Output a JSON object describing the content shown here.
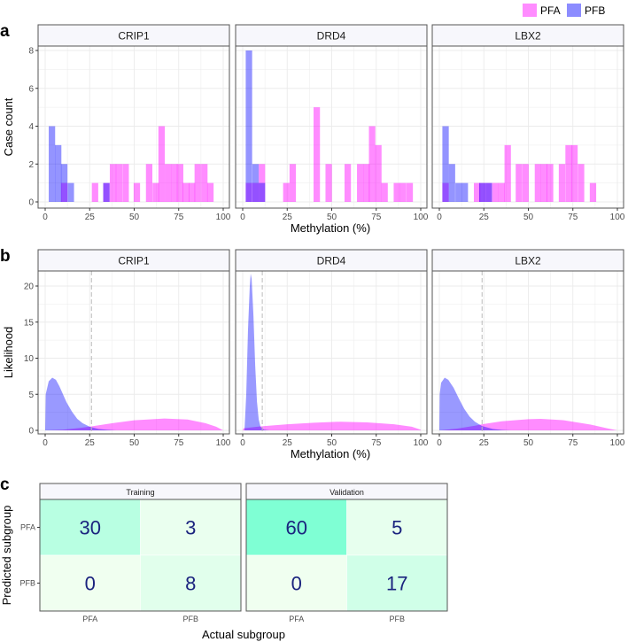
{
  "legend": {
    "items": [
      {
        "label": "PFA",
        "color": "#ff00ff"
      },
      {
        "label": "PFB",
        "color": "#0000ff"
      }
    ]
  },
  "chart_data": [
    {
      "panel": "a",
      "type": "bar",
      "subtype": "histogram",
      "xlabel": "Methylation (%)",
      "ylabel": "Case count",
      "xlim": [
        0,
        100
      ],
      "ylim": [
        0,
        8
      ],
      "xticks": [
        "0",
        "25",
        "50",
        "75",
        "100"
      ],
      "yticks": [
        "0",
        "2",
        "4",
        "6",
        "8"
      ],
      "bin_width": 3.6,
      "grid": true,
      "legend": "top-right",
      "facets": [
        {
          "title": "CRIP1",
          "bins": [
            {
              "x": 2.0,
              "PFA": 0,
              "PFB": 4
            },
            {
              "x": 5.5,
              "PFA": 0,
              "PFB": 3
            },
            {
              "x": 8.9,
              "PFA": 1,
              "PFB": 2
            },
            {
              "x": 12.6,
              "PFA": 0,
              "PFB": 1
            },
            {
              "x": 26.2,
              "PFA": 1,
              "PFB": 0
            },
            {
              "x": 32.6,
              "PFA": 1,
              "PFB": 1
            },
            {
              "x": 36.3,
              "PFA": 2,
              "PFB": 0
            },
            {
              "x": 39.7,
              "PFA": 2,
              "PFB": 0
            },
            {
              "x": 43.4,
              "PFA": 2,
              "PFB": 0
            },
            {
              "x": 49.7,
              "PFA": 1,
              "PFB": 0
            },
            {
              "x": 56.6,
              "PFA": 2,
              "PFB": 0
            },
            {
              "x": 60.3,
              "PFA": 1,
              "PFB": 0
            },
            {
              "x": 63.6,
              "PFA": 4,
              "PFB": 0
            },
            {
              "x": 67.2,
              "PFA": 2,
              "PFB": 0
            },
            {
              "x": 70.7,
              "PFA": 2,
              "PFB": 0
            },
            {
              "x": 74.0,
              "PFA": 2,
              "PFB": 0
            },
            {
              "x": 77.3,
              "PFA": 1,
              "PFB": 0
            },
            {
              "x": 80.6,
              "PFA": 1,
              "PFB": 0
            },
            {
              "x": 83.9,
              "PFA": 2,
              "PFB": 0
            },
            {
              "x": 87.6,
              "PFA": 2,
              "PFB": 0
            },
            {
              "x": 91.0,
              "PFA": 1,
              "PFB": 0
            }
          ]
        },
        {
          "title": "DRD4",
          "bins": [
            {
              "x": 1.7,
              "PFA": 1,
              "PFB": 8
            },
            {
              "x": 5.4,
              "PFA": 1,
              "PFB": 2
            },
            {
              "x": 9.0,
              "PFA": 2,
              "PFB": 1
            },
            {
              "x": 22.7,
              "PFA": 1,
              "PFB": 0
            },
            {
              "x": 26.3,
              "PFA": 2,
              "PFB": 0
            },
            {
              "x": 39.8,
              "PFA": 5,
              "PFB": 0
            },
            {
              "x": 46.5,
              "PFA": 2,
              "PFB": 0
            },
            {
              "x": 57.2,
              "PFA": 2,
              "PFB": 0
            },
            {
              "x": 64.2,
              "PFA": 2,
              "PFB": 0
            },
            {
              "x": 67.7,
              "PFA": 2,
              "PFB": 0
            },
            {
              "x": 70.9,
              "PFA": 4,
              "PFB": 0
            },
            {
              "x": 74.4,
              "PFA": 3,
              "PFB": 0
            },
            {
              "x": 77.9,
              "PFA": 1,
              "PFB": 0
            },
            {
              "x": 84.8,
              "PFA": 1,
              "PFB": 0
            },
            {
              "x": 88.3,
              "PFA": 1,
              "PFB": 0
            },
            {
              "x": 92.0,
              "PFA": 1,
              "PFB": 0
            }
          ]
        },
        {
          "title": "LBX2",
          "bins": [
            {
              "x": 1.7,
              "PFA": 1,
              "PFB": 4
            },
            {
              "x": 5.3,
              "PFA": 0,
              "PFB": 2
            },
            {
              "x": 9.0,
              "PFA": 0,
              "PFB": 1
            },
            {
              "x": 12.5,
              "PFA": 0,
              "PFB": 1
            },
            {
              "x": 19.4,
              "PFA": 1,
              "PFB": 0
            },
            {
              "x": 22.4,
              "PFA": 1,
              "PFB": 1
            },
            {
              "x": 26.0,
              "PFA": 1,
              "PFB": 1
            },
            {
              "x": 29.7,
              "PFA": 1,
              "PFB": 0
            },
            {
              "x": 33.2,
              "PFA": 1,
              "PFB": 0
            },
            {
              "x": 36.6,
              "PFA": 3,
              "PFB": 0
            },
            {
              "x": 42.9,
              "PFA": 2,
              "PFB": 0
            },
            {
              "x": 46.6,
              "PFA": 2,
              "PFB": 0
            },
            {
              "x": 53.6,
              "PFA": 2,
              "PFB": 0
            },
            {
              "x": 57.1,
              "PFA": 2,
              "PFB": 0
            },
            {
              "x": 60.4,
              "PFA": 2,
              "PFB": 0
            },
            {
              "x": 67.1,
              "PFA": 2,
              "PFB": 0
            },
            {
              "x": 70.8,
              "PFA": 3,
              "PFB": 0
            },
            {
              "x": 74.1,
              "PFA": 3,
              "PFB": 0
            },
            {
              "x": 77.8,
              "PFA": 2,
              "PFB": 0
            },
            {
              "x": 84.5,
              "PFA": 1,
              "PFB": 0
            }
          ]
        }
      ]
    },
    {
      "panel": "b",
      "type": "area",
      "subtype": "density",
      "xlabel": "Methylation (%)",
      "ylabel": "Likelihood",
      "xlim": [
        0,
        100
      ],
      "ylim": [
        0,
        22
      ],
      "xticks": [
        "0",
        "25",
        "50",
        "75",
        "100"
      ],
      "yticks": [
        "0",
        "5",
        "10",
        "15",
        "20"
      ],
      "grid": true,
      "facets": [
        {
          "title": "CRIP1",
          "threshold": 26,
          "PFB": [
            [
              0,
              0
            ],
            [
              0.3,
              5
            ],
            [
              2,
              6.8
            ],
            [
              4,
              7.3
            ],
            [
              6,
              7
            ],
            [
              8,
              6.1
            ],
            [
              10,
              5
            ],
            [
              12,
              3.9
            ],
            [
              15,
              2.6
            ],
            [
              18,
              1.6
            ],
            [
              21,
              1
            ],
            [
              25,
              0.5
            ],
            [
              30,
              0.2
            ],
            [
              35,
              0.07
            ],
            [
              40,
              0
            ]
          ],
          "PFA": [
            [
              0,
              0
            ],
            [
              10,
              0.1
            ],
            [
              20,
              0.35
            ],
            [
              26,
              0.55
            ],
            [
              35,
              0.9
            ],
            [
              50,
              1.4
            ],
            [
              67,
              1.65
            ],
            [
              80,
              1.5
            ],
            [
              90,
              1.0
            ],
            [
              96,
              0.5
            ],
            [
              100,
              0
            ]
          ]
        },
        {
          "title": "DRD4",
          "threshold": 11,
          "PFB": [
            [
              1,
              0
            ],
            [
              2,
              5
            ],
            [
              3,
              14
            ],
            [
              4,
              20
            ],
            [
              4.5,
              21.7
            ],
            [
              5,
              21
            ],
            [
              6,
              16
            ],
            [
              7,
              9
            ],
            [
              8,
              4
            ],
            [
              9,
              1.5
            ],
            [
              10,
              0.5
            ],
            [
              12,
              0.1
            ],
            [
              15,
              0
            ]
          ],
          "PFA": [
            [
              0,
              0
            ],
            [
              0.5,
              0.3
            ],
            [
              10,
              0.55
            ],
            [
              25,
              0.85
            ],
            [
              40,
              1.05
            ],
            [
              55,
              1.2
            ],
            [
              70,
              1.1
            ],
            [
              85,
              0.85
            ],
            [
              95,
              0.5
            ],
            [
              100,
              0.1
            ],
            [
              100,
              0
            ]
          ]
        },
        {
          "title": "LBX2",
          "threshold": 24,
          "PFB": [
            [
              0,
              0
            ],
            [
              0.2,
              5
            ],
            [
              1,
              6.6
            ],
            [
              3,
              7.3
            ],
            [
              5,
              7
            ],
            [
              8,
              5.9
            ],
            [
              11,
              4.4
            ],
            [
              14,
              3
            ],
            [
              17,
              1.9
            ],
            [
              20,
              1.2
            ],
            [
              24,
              0.6
            ],
            [
              30,
              0.2
            ],
            [
              35,
              0.06
            ],
            [
              40,
              0
            ]
          ],
          "PFA": [
            [
              0,
              0
            ],
            [
              10,
              0.25
            ],
            [
              20,
              0.65
            ],
            [
              24,
              0.85
            ],
            [
              35,
              1.25
            ],
            [
              50,
              1.55
            ],
            [
              57,
              1.6
            ],
            [
              70,
              1.4
            ],
            [
              85,
              0.8
            ],
            [
              95,
              0.25
            ],
            [
              100,
              0
            ]
          ]
        }
      ]
    },
    {
      "panel": "c",
      "type": "heatmap",
      "xlabel": "Actual subgroup",
      "ylabel": "Predicted subgroup",
      "categories": [
        "PFA",
        "PFB"
      ],
      "facets": [
        {
          "title": "Training",
          "cells": [
            [
              30,
              3
            ],
            [
              0,
              8
            ]
          ]
        },
        {
          "title": "Validation",
          "cells": [
            [
              60,
              5
            ],
            [
              0,
              17
            ]
          ]
        }
      ],
      "color_low": "#f0fff0",
      "color_high": "#7fffd4",
      "value_max": 60,
      "text_color": "#1a237e"
    }
  ]
}
